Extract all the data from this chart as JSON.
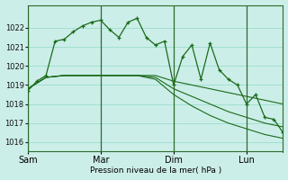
{
  "background_color": "#cceee8",
  "grid_color": "#99ddcc",
  "line_color": "#1a6b1a",
  "marker_color": "#1a6b1a",
  "xlabel_text": "Pression niveau de la mer( hPa )",
  "xtick_labels": [
    "Sam",
    "Mar",
    "Dim",
    "Lun"
  ],
  "xtick_positions": [
    0,
    48,
    96,
    144
  ],
  "ylim": [
    1015.5,
    1023.2
  ],
  "yticks": [
    1016,
    1017,
    1018,
    1019,
    1020,
    1021,
    1022
  ],
  "vline_positions": [
    0,
    48,
    96,
    144
  ],
  "series_flat1": {
    "x": [
      0,
      12,
      24,
      36,
      48,
      60,
      72,
      84,
      96,
      108,
      120,
      132,
      144,
      156,
      168
    ],
    "y": [
      1018.8,
      1019.4,
      1019.5,
      1019.5,
      1019.5,
      1019.5,
      1019.5,
      1019.5,
      1019.2,
      1019.0,
      1018.8,
      1018.6,
      1018.4,
      1018.2,
      1018.0
    ]
  },
  "series_flat2": {
    "x": [
      0,
      12,
      24,
      36,
      48,
      60,
      72,
      84,
      96,
      108,
      120,
      132,
      144,
      156,
      168
    ],
    "y": [
      1018.8,
      1019.4,
      1019.5,
      1019.5,
      1019.5,
      1019.5,
      1019.5,
      1019.4,
      1018.8,
      1018.4,
      1018.0,
      1017.6,
      1017.3,
      1017.0,
      1016.8
    ]
  },
  "series_flat3": {
    "x": [
      0,
      12,
      24,
      36,
      48,
      60,
      72,
      84,
      96,
      108,
      120,
      132,
      144,
      156,
      168
    ],
    "y": [
      1018.8,
      1019.4,
      1019.5,
      1019.5,
      1019.5,
      1019.5,
      1019.5,
      1019.3,
      1018.5,
      1017.9,
      1017.4,
      1017.0,
      1016.7,
      1016.4,
      1016.2
    ]
  },
  "series_main": {
    "x": [
      0,
      6,
      12,
      18,
      24,
      30,
      36,
      42,
      48,
      54,
      60,
      66,
      72,
      78,
      84,
      90,
      96,
      102,
      108,
      114,
      120,
      126,
      132,
      138,
      144,
      150,
      156,
      162,
      168
    ],
    "y": [
      1018.7,
      1019.2,
      1019.5,
      1021.3,
      1021.4,
      1021.8,
      1022.1,
      1022.3,
      1022.4,
      1021.9,
      1021.5,
      1022.3,
      1022.5,
      1021.5,
      1021.1,
      1021.3,
      1019.0,
      1020.5,
      1021.1,
      1019.3,
      1021.2,
      1019.8,
      1019.3,
      1019.0,
      1018.0,
      1018.5,
      1017.3,
      1017.2,
      1016.5
    ]
  }
}
